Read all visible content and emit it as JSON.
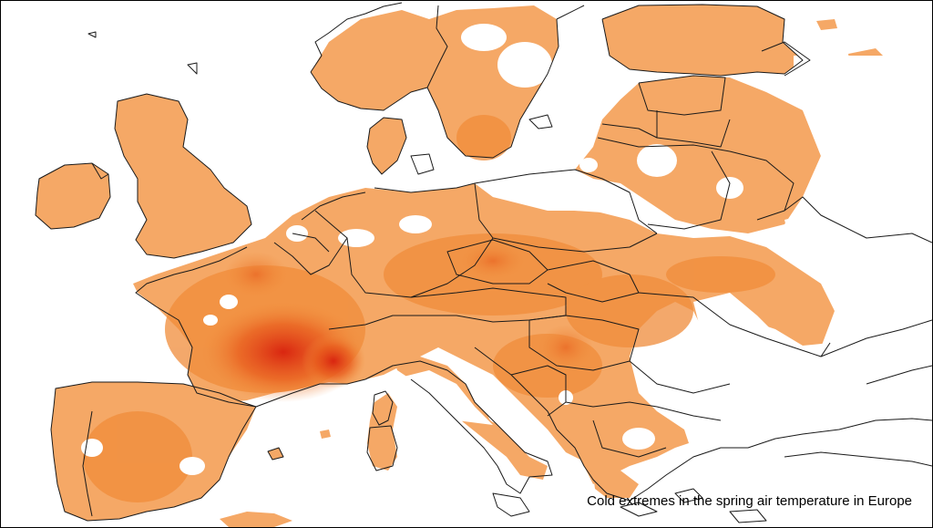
{
  "map": {
    "caption": "Cold extremes in the spring air temperature in Europe",
    "colors": {
      "background": "#ffffff",
      "border": "#1a1a1a",
      "anomaly_light": "#f6b57a",
      "anomaly_mid": "#f08c3a",
      "anomaly_strong": "#e85a1c",
      "anomaly_extreme": "#d8200e"
    }
  }
}
